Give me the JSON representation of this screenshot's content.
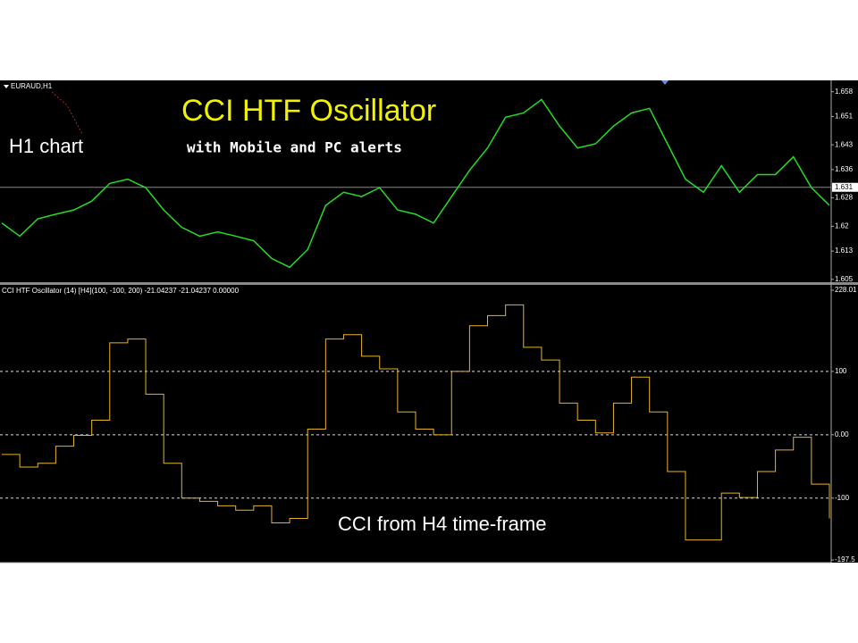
{
  "chart_data": [
    {
      "type": "line",
      "symbol": "EURAUD,H1",
      "title": "CCI HTF Oscillator",
      "subtitle": "with Mobile and PC alerts",
      "annotation": "H1 chart",
      "color": "#22dd22",
      "values": [
        1.6209,
        1.6172,
        1.6221,
        1.6234,
        1.6246,
        1.6271,
        1.6321,
        1.6333,
        1.6309,
        1.6246,
        1.6197,
        1.6172,
        1.6184,
        1.6172,
        1.6159,
        1.6109,
        1.6084,
        1.6134,
        1.6259,
        1.6296,
        1.6284,
        1.6309,
        1.6246,
        1.6234,
        1.6209,
        1.6284,
        1.6358,
        1.6421,
        1.6508,
        1.652,
        1.6558,
        1.6483,
        1.6421,
        1.6433,
        1.6483,
        1.652,
        1.6533,
        1.6433,
        1.6333,
        1.6296,
        1.6371,
        1.6296,
        1.6346,
        1.6346,
        1.6396,
        1.6309,
        1.6259
      ],
      "current": 1.631,
      "ylim": [
        1.6047,
        1.6607
      ],
      "yticks": [
        1.658,
        1.651,
        1.643,
        1.636,
        1.628,
        1.62,
        1.613,
        1.605
      ],
      "grid": false
    },
    {
      "type": "line",
      "step": true,
      "title": "CCI HTF Oscillator (14) [H4](100, -100, 200) -21.04237 -21.04237 0.00000",
      "annotation": "CCI from H4 time-frame",
      "color": "#e6b422",
      "values": [
        -31,
        -51,
        -45,
        -18,
        -1,
        23,
        145,
        151,
        64,
        -45,
        -100,
        -105,
        -112,
        -119,
        -112,
        -139,
        -132,
        9,
        151,
        158,
        124,
        104,
        36,
        9,
        0,
        100,
        172,
        188,
        205,
        138,
        118,
        50,
        23,
        3,
        50,
        91,
        36,
        -58,
        -166,
        -166,
        -92,
        -99,
        -58,
        -24,
        -4,
        -78,
        -132
      ],
      "ylim": [
        -197.5,
        228.01
      ],
      "yticks": [
        228.01,
        100,
        {
          "value": 0,
          "label": "0.00"
        },
        -100,
        -197.5
      ],
      "grid": true
    }
  ]
}
